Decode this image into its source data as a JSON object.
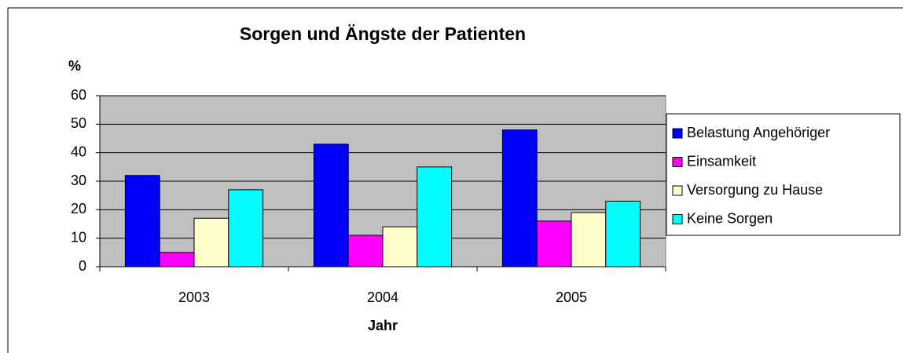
{
  "chart_data": {
    "type": "bar",
    "title": "Sorgen und Ängste der Patienten",
    "y_label": "%",
    "x_label": "Jahr",
    "categories": [
      "2003",
      "2004",
      "2005"
    ],
    "series": [
      {
        "name": "Belastung Angehöriger",
        "color": "#0000ff",
        "values": [
          32,
          43,
          48
        ]
      },
      {
        "name": "Einsamkeit",
        "color": "#ff00ff",
        "values": [
          5,
          11,
          16
        ]
      },
      {
        "name": "Versorgung zu Hause",
        "color": "#ffffcc",
        "values": [
          17,
          14,
          19
        ]
      },
      {
        "name": "Keine Sorgen",
        "color": "#00ffff",
        "values": [
          27,
          35,
          23
        ]
      }
    ],
    "ylim": [
      0,
      60
    ],
    "yticks": [
      0,
      10,
      20,
      30,
      40,
      50,
      60
    ],
    "grid": true,
    "legend": "right"
  }
}
